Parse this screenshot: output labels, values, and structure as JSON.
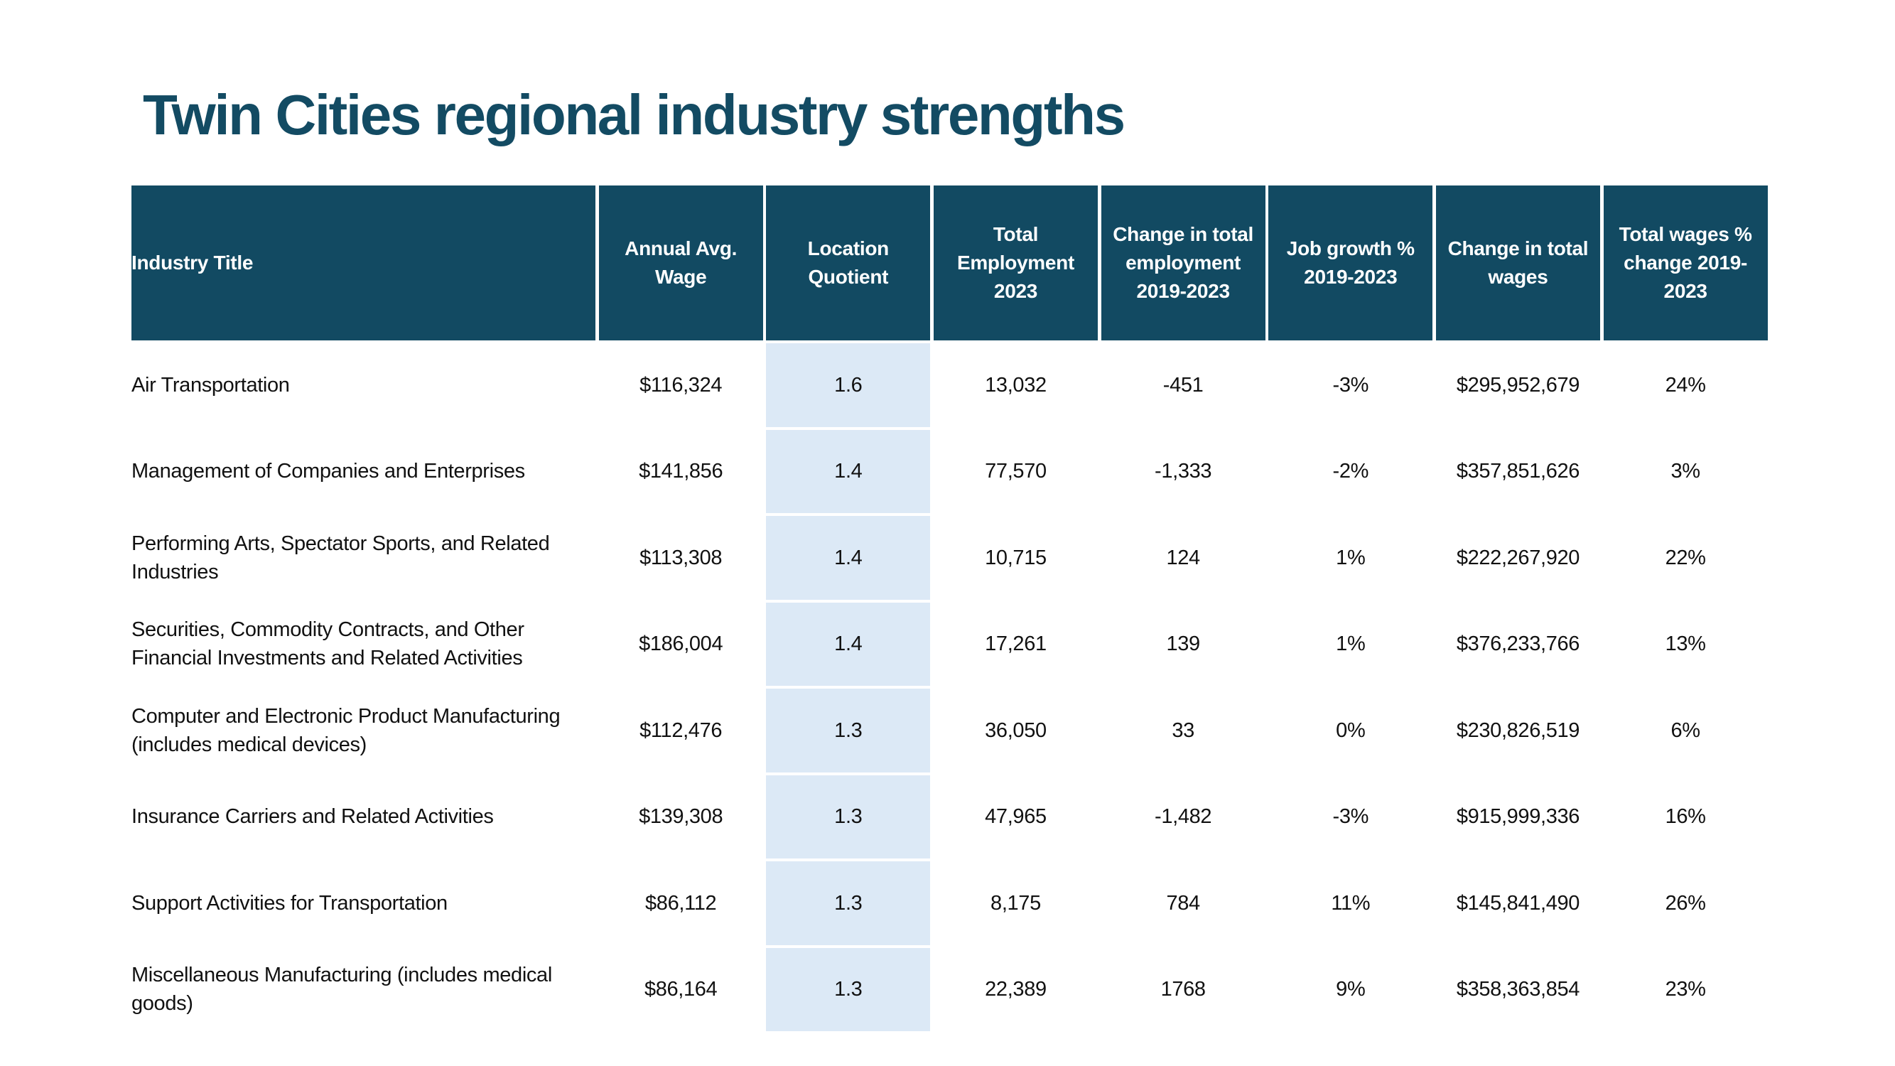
{
  "title": "Twin Cities regional industry strengths",
  "colors": {
    "title": "#134b63",
    "header_bg": "#124a62",
    "header_text": "#ffffff",
    "highlight_column_bg": "#dce9f6",
    "body_text": "#111111"
  },
  "table": {
    "highlighted_column": "Location Quotient",
    "headers": [
      "Industry Title",
      "Annual Avg. Wage",
      "Location Quotient",
      "Total Employment 2023",
      "Change in total employment 2019-2023",
      "Job growth % 2019-2023",
      "Change in total wages",
      "Total wages % change 2019-2023"
    ],
    "rows": [
      [
        "Air Transportation",
        "$116,324",
        "1.6",
        "13,032",
        "-451",
        "-3%",
        "$295,952,679",
        "24%"
      ],
      [
        "Management of Companies and Enterprises",
        "$141,856",
        "1.4",
        "77,570",
        "-1,333",
        "-2%",
        "$357,851,626",
        "3%"
      ],
      [
        "Performing Arts, Spectator Sports, and Related Industries",
        "$113,308",
        "1.4",
        "10,715",
        "124",
        "1%",
        "$222,267,920",
        "22%"
      ],
      [
        "Securities, Commodity Contracts, and Other Financial Investments and Related Activities",
        "$186,004",
        "1.4",
        "17,261",
        "139",
        "1%",
        "$376,233,766",
        "13%"
      ],
      [
        "Computer and Electronic Product Manufacturing (includes medical devices)",
        "$112,476",
        "1.3",
        "36,050",
        "33",
        "0%",
        "$230,826,519",
        "6%"
      ],
      [
        "Insurance Carriers and Related Activities",
        "$139,308",
        "1.3",
        "47,965",
        "-1,482",
        "-3%",
        "$915,999,336",
        "16%"
      ],
      [
        "Support Activities for Transportation",
        "$86,112",
        "1.3",
        "8,175",
        "784",
        "11%",
        "$145,841,490",
        "26%"
      ],
      [
        "Miscellaneous Manufacturing (includes medical goods)",
        "$86,164",
        "1.3",
        "22,389",
        "1768",
        "9%",
        "$358,363,854",
        "23%"
      ]
    ]
  }
}
